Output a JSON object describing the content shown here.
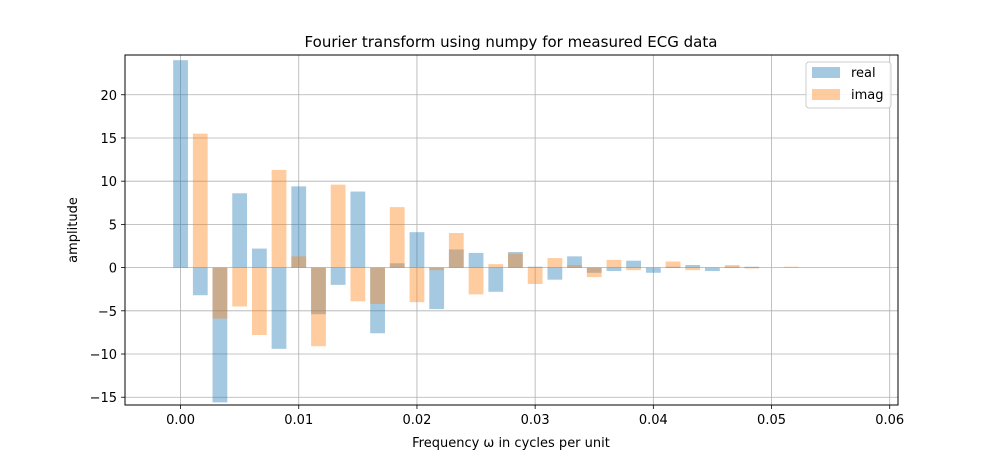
{
  "chart_data": {
    "type": "bar",
    "title": "Fourier transform using numpy for measured ECG data",
    "xlabel": "Frequency ω in cycles per unit",
    "ylabel": "amplitude",
    "xlim": [
      -0.0047,
      0.0607
    ],
    "ylim": [
      -15.9,
      24.6
    ],
    "xticks": [
      0.0,
      0.01,
      0.02,
      0.03,
      0.04,
      0.05,
      0.06
    ],
    "xtick_labels": [
      "0.00",
      "0.01",
      "0.02",
      "0.03",
      "0.04",
      "0.05",
      "0.06"
    ],
    "yticks": [
      -15,
      -10,
      -5,
      0,
      5,
      10,
      15,
      20
    ],
    "ytick_labels": [
      "−15",
      "−10",
      "−5",
      "0",
      "5",
      "10",
      "15",
      "20"
    ],
    "grid": true,
    "legend_position": "top-right",
    "bar_width": 0.00125,
    "x": [
      0.0,
      0.00167,
      0.00333,
      0.005,
      0.00667,
      0.00833,
      0.01,
      0.01167,
      0.01333,
      0.015,
      0.01667,
      0.01833,
      0.02,
      0.02167,
      0.02333,
      0.025,
      0.02667,
      0.02833,
      0.03,
      0.03167,
      0.03333,
      0.035,
      0.03667,
      0.03833,
      0.04,
      0.04167,
      0.04333,
      0.045,
      0.04667,
      0.04833,
      0.05,
      0.05167
    ],
    "series": [
      {
        "name": "real",
        "color": "#1f77b4",
        "opacity": 0.4,
        "values": [
          24.0,
          -3.2,
          -15.6,
          8.6,
          2.2,
          -9.4,
          9.4,
          -5.4,
          -2.0,
          8.8,
          -7.6,
          0.5,
          4.1,
          -4.8,
          2.1,
          1.7,
          -2.8,
          1.8,
          0.1,
          -1.4,
          1.3,
          -0.6,
          -0.4,
          0.8,
          -0.6,
          0.1,
          0.3,
          -0.4,
          0.1,
          0.1,
          0.0,
          0.0
        ]
      },
      {
        "name": "imag",
        "color": "#ff7f0e",
        "opacity": 0.4,
        "values": [
          0.0,
          15.5,
          -5.9,
          -4.5,
          -7.8,
          11.3,
          1.3,
          -9.1,
          9.6,
          -3.9,
          -4.2,
          7.0,
          -4.0,
          -0.3,
          4.0,
          -3.1,
          0.4,
          1.6,
          -1.9,
          1.1,
          0.3,
          -1.1,
          0.9,
          -0.3,
          0.0,
          0.7,
          -0.3,
          0.0,
          0.3,
          -0.1,
          0.0,
          0.1
        ]
      }
    ]
  }
}
